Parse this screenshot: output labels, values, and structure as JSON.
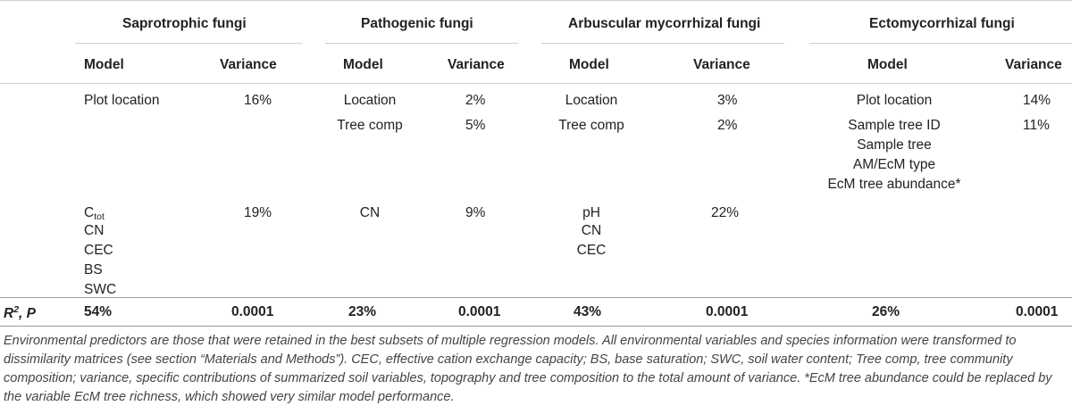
{
  "groups": {
    "sap": "Saprotrophic fungi",
    "path": "Pathogenic fungi",
    "am": "Arbuscular mycorrhizal fungi",
    "ecm": "Ectomycorrhizal fungi"
  },
  "headers": {
    "model": "Model",
    "variance": "Variance"
  },
  "sap": {
    "row1_model": "Plot location",
    "row1_var": "16%",
    "row2_model_base": "C",
    "row2_model_sub": "tot",
    "row2_var": "19%",
    "row2_extra": [
      "CN",
      "CEC",
      "BS",
      "SWC"
    ]
  },
  "path": {
    "row1_model": "Location",
    "row1_var": "2%",
    "row1b_model": "Tree comp",
    "row1b_var": "5%",
    "row2_model": "CN",
    "row2_var": "9%"
  },
  "am": {
    "row1_model": "Location",
    "row1_var": "3%",
    "row1b_model": "Tree comp",
    "row1b_var": "2%",
    "row2_models": [
      "pH",
      "CN",
      "CEC"
    ],
    "row2_var": "22%"
  },
  "ecm": {
    "row1_model": "Plot location",
    "row1_var": "14%",
    "row1b_model": "Sample tree ID",
    "row1b_var": "11%",
    "row1c_model": "Sample tree",
    "row1d_model": "AM/EcM type",
    "row1e_model": "EcM tree abundance*"
  },
  "summary": {
    "label_base": "R",
    "label_sup": "2",
    "label_rest": ", P",
    "sap_r2": "54%",
    "sap_p": "0.0001",
    "path_r2": "23%",
    "path_p": "0.0001",
    "am_r2": "43%",
    "am_p": "0.0001",
    "ecm_r2": "26%",
    "ecm_p": "0.0001"
  },
  "footnote": "Environmental predictors are those that were retained in the best subsets of multiple regression models. All environmental variables and species information were transformed to dissimilarity matrices (see section “Materials and Methods”). CEC, effective cation exchange capacity; BS, base saturation; SWC, soil water content; Tree comp, tree community composition; variance, specific contributions of summarized soil variables, topography and tree composition to the total amount of variance. *EcM tree abundance could be replaced by the variable EcM tree richness, which showed very similar model performance."
}
